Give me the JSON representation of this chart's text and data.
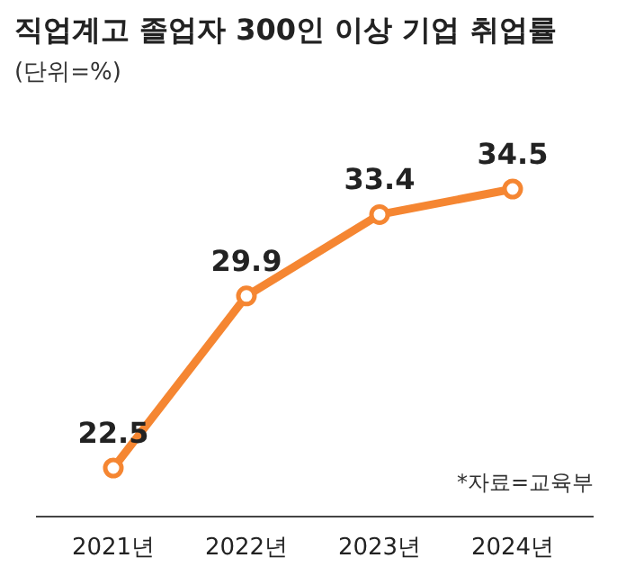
{
  "chart_data": {
    "type": "line",
    "title": "직업계고 졸업자 300인 이상 기업 취업률",
    "subtitle": "(단위=%)",
    "categories": [
      "2021년",
      "2022년",
      "2023년",
      "2024년"
    ],
    "series": [
      {
        "color": "#f58632",
        "values": [
          22.5,
          29.9,
          33.4,
          34.5
        ]
      }
    ],
    "data_labels": true,
    "marker": "circle",
    "line_style": "solid",
    "annotations": [
      "*자료=교육부"
    ]
  }
}
